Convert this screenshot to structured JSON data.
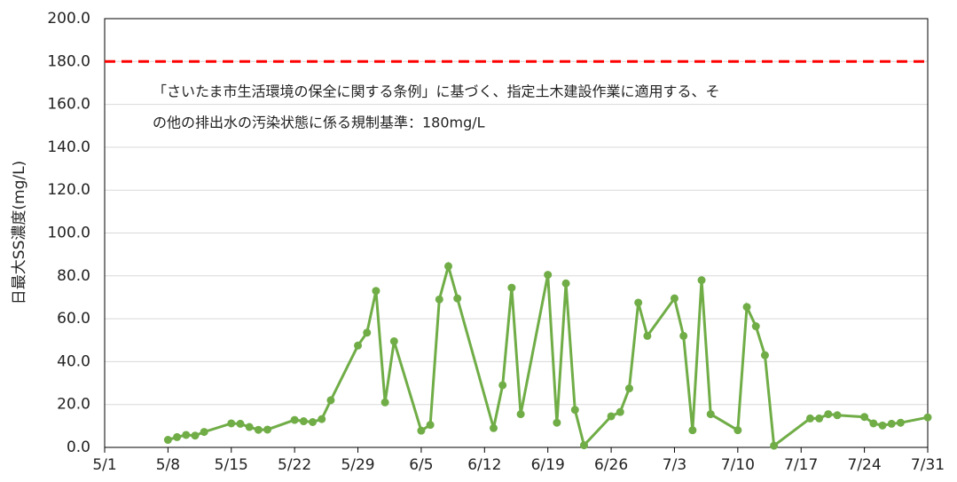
{
  "chart_data": {
    "type": "line",
    "y_label": "日最大SS濃度(mg/L)",
    "x": [
      "5/8",
      "5/9",
      "5/10",
      "5/11",
      "5/12",
      "5/15",
      "5/16",
      "5/17",
      "5/18",
      "5/19",
      "5/22",
      "5/23",
      "5/24",
      "5/25",
      "5/26",
      "5/29",
      "5/30",
      "5/31",
      "6/1",
      "6/2",
      "6/5",
      "6/6",
      "6/7",
      "6/8",
      "6/9",
      "6/13",
      "6/14",
      "6/15",
      "6/16",
      "6/19",
      "6/20",
      "6/21",
      "6/22",
      "6/23",
      "6/26",
      "6/27",
      "6/28",
      "6/29",
      "6/30",
      "7/3",
      "7/4",
      "7/5",
      "7/6",
      "7/7",
      "7/10",
      "7/11",
      "7/12",
      "7/13",
      "7/14",
      "7/18",
      "7/19",
      "7/20",
      "7/21",
      "7/24",
      "7/25",
      "7/26",
      "7/27",
      "7/28",
      "7/31"
    ],
    "series": [
      {
        "color": "#70ad47",
        "values": [
          3.5,
          4.8,
          5.8,
          5.5,
          7.2,
          11.2,
          11,
          9.5,
          8.2,
          8.3,
          12.8,
          12.2,
          11.8,
          13.2,
          22,
          47.5,
          53.5,
          73,
          21,
          49.5,
          7.8,
          10.5,
          69,
          84.5,
          69.5,
          9,
          29,
          74.5,
          15.5,
          80.5,
          11.5,
          76.5,
          17.5,
          1,
          14.5,
          16.5,
          27.5,
          67.5,
          52,
          69.5,
          52,
          8,
          78,
          15.5,
          8,
          65.5,
          56.5,
          43,
          0.8,
          13.5,
          13.5,
          15.5,
          15,
          14.2,
          11.2,
          10.2,
          11,
          11.5,
          14
        ]
      }
    ],
    "xlim": [
      "5/1",
      "7/31"
    ],
    "xticks": [
      "5/1",
      "5/8",
      "5/15",
      "5/22",
      "5/29",
      "6/5",
      "6/12",
      "6/19",
      "6/26",
      "7/3",
      "7/10",
      "7/17",
      "7/24",
      "7/31"
    ],
    "ylim": [
      0,
      200
    ],
    "yticks": [
      {
        "value": 0,
        "label": "0.0"
      },
      {
        "value": 20,
        "label": "20.0"
      },
      {
        "value": 40,
        "label": "40.0"
      },
      {
        "value": 60,
        "label": "60.0"
      },
      {
        "value": 80,
        "label": "80.0"
      },
      {
        "value": 100,
        "label": "100.0"
      },
      {
        "value": 120,
        "label": "120.0"
      },
      {
        "value": 140,
        "label": "140.0"
      },
      {
        "value": 160,
        "label": "160.0"
      },
      {
        "value": 180,
        "label": "180.0"
      },
      {
        "value": 200,
        "label": "200.0"
      }
    ],
    "grid": true,
    "reference_line": {
      "value": 180,
      "color": "#ff0000"
    },
    "annotation": [
      "「さいたま市生活環境の保全に関する条例」に基づく、指定土木建設作業に適用する、そ",
      "の他の排出水の汚染状態に係る規制基準：180mg/L"
    ]
  }
}
